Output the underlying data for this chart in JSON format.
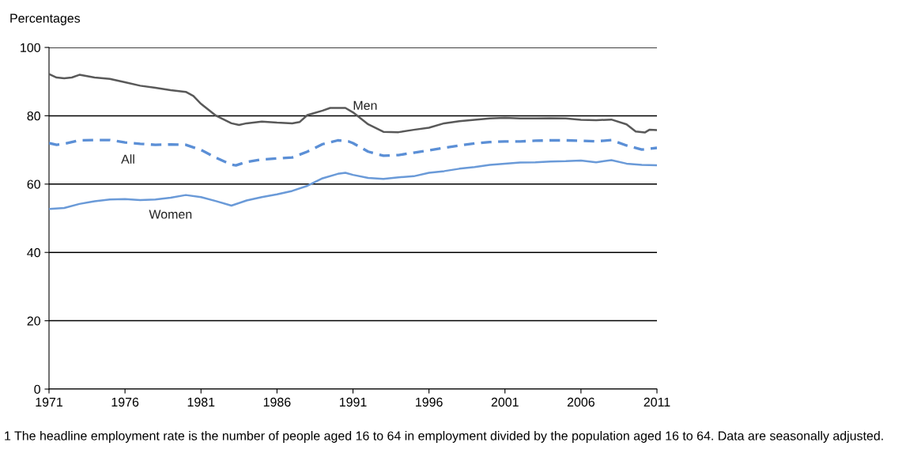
{
  "chart_data": {
    "type": "line",
    "ylabel": "Percentages",
    "xlim": [
      1971,
      2011
    ],
    "xticks": [
      1971,
      1976,
      1981,
      1986,
      1991,
      1996,
      2001,
      2006,
      2011
    ],
    "ylim": [
      0,
      100
    ],
    "yticks": [
      0,
      20,
      40,
      60,
      80,
      100
    ],
    "grid": "y",
    "legend": false,
    "marker": "none",
    "series": [
      {
        "name": "Men",
        "color": "#595959",
        "line_style": "solid",
        "x": [
          1971,
          1971.5,
          1972,
          1972.5,
          1973,
          1974,
          1975,
          1976,
          1977,
          1978,
          1979,
          1980,
          1980.5,
          1981,
          1982,
          1983,
          1983.5,
          1984,
          1985,
          1986,
          1987,
          1987.5,
          1988,
          1989,
          1989.5,
          1990.5,
          1991,
          1992,
          1993,
          1994,
          1995,
          1996,
          1997,
          1998,
          1999,
          2000,
          2001,
          2002,
          2003,
          2004,
          2005,
          2006,
          2007,
          2008,
          2009,
          2009.6,
          2010.2,
          2010.5,
          2011
        ],
        "values": [
          92.2,
          91.2,
          91,
          91.2,
          92,
          91.2,
          90.8,
          89.8,
          88.8,
          88.2,
          87.5,
          87,
          85.8,
          83.5,
          80,
          77.8,
          77.3,
          77.8,
          78.3,
          78,
          77.8,
          78.2,
          80.2,
          81.5,
          82.3,
          82.3,
          81,
          77.5,
          75.3,
          75.2,
          75.9,
          76.5,
          77.8,
          78.4,
          78.8,
          79.2,
          79.4,
          79.2,
          79.2,
          79.3,
          79.2,
          78.8,
          78.7,
          78.9,
          77.5,
          75.4,
          75.1,
          75.9,
          75.8
        ]
      },
      {
        "name": "All",
        "color": "#5b8fd6",
        "line_style": "dashed",
        "x": [
          1971,
          1971.5,
          1972,
          1973,
          1974,
          1975,
          1976,
          1977,
          1978,
          1979,
          1980,
          1981,
          1982,
          1983,
          1983.3,
          1984,
          1985,
          1986,
          1987,
          1988,
          1989,
          1990,
          1990.7,
          1991,
          1992,
          1993,
          1994,
          1995,
          1996,
          1997,
          1998,
          1999,
          2000,
          2001,
          2002,
          2003,
          2004,
          2005,
          2006,
          2007,
          2008,
          2009,
          2010,
          2011
        ],
        "values": [
          72,
          71.5,
          71.8,
          72.8,
          72.9,
          72.9,
          72.2,
          71.8,
          71.5,
          71.6,
          71.5,
          70,
          67.7,
          65.7,
          65.5,
          66.5,
          67.2,
          67.5,
          67.8,
          69.5,
          71.7,
          72.8,
          72.5,
          72,
          69.5,
          68.3,
          68.5,
          69.2,
          69.9,
          70.6,
          71.3,
          71.9,
          72.3,
          72.5,
          72.5,
          72.7,
          72.8,
          72.8,
          72.7,
          72.5,
          72.9,
          71.3,
          70.1,
          70.6
        ]
      },
      {
        "name": "Women",
        "color": "#6a9ad8",
        "line_style": "solid",
        "x": [
          1971,
          1972,
          1973,
          1974,
          1975,
          1976,
          1977,
          1978,
          1979,
          1980,
          1981,
          1982,
          1983,
          1984,
          1985,
          1986,
          1987,
          1988,
          1989,
          1990,
          1990.5,
          1991,
          1992,
          1993,
          1994,
          1995,
          1996,
          1997,
          1998,
          1999,
          2000,
          2001,
          2002,
          2003,
          2004,
          2005,
          2006,
          2007,
          2008,
          2009,
          2010,
          2011
        ],
        "values": [
          52.7,
          53,
          54.2,
          55,
          55.5,
          55.6,
          55.3,
          55.5,
          56,
          56.8,
          56.2,
          55,
          53.7,
          55.2,
          56.2,
          57,
          58,
          59.5,
          61.7,
          63,
          63.3,
          62.7,
          61.8,
          61.5,
          62,
          62.3,
          63.3,
          63.8,
          64.5,
          65,
          65.6,
          66,
          66.3,
          66.4,
          66.6,
          66.7,
          66.9,
          66.4,
          67,
          66,
          65.6,
          65.5
        ]
      }
    ],
    "annotations": [
      "1 The headline employment rate is the number of people aged 16 to 64 in employment divided by the population aged 16 to 64. Data are seasonally adjusted."
    ]
  }
}
